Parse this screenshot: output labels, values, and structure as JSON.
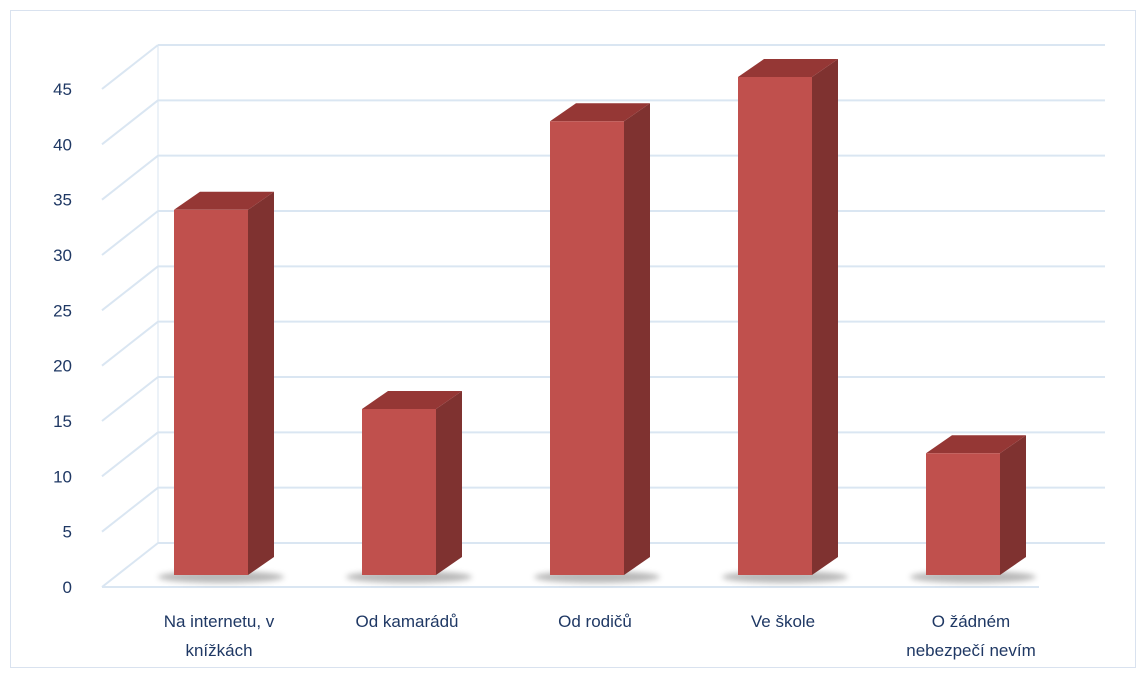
{
  "chart_data": {
    "type": "bar",
    "title": "",
    "xlabel": "",
    "ylabel": "",
    "categories": [
      [
        "Na internetu, v",
        "knížkách"
      ],
      [
        "Od kamarádů"
      ],
      [
        "Od rodičů"
      ],
      [
        "Ve škole"
      ],
      [
        "O žádném",
        "nebezpečí nevím"
      ]
    ],
    "values": [
      33,
      15,
      41,
      45,
      11
    ],
    "ylim": [
      0,
      45
    ],
    "ytick_step": 5,
    "yticks": [
      "0",
      "5",
      "10",
      "15",
      "20",
      "25",
      "30",
      "35",
      "40",
      "45"
    ],
    "grid": true,
    "legend": "none",
    "style": "3d-column",
    "colors": {
      "bar_front": "#c0504d",
      "bar_side": "#7f3230",
      "bar_top": "#953735",
      "grid": "#dae6f2",
      "text": "#1f3864",
      "frame": "#d9e2ef"
    }
  }
}
